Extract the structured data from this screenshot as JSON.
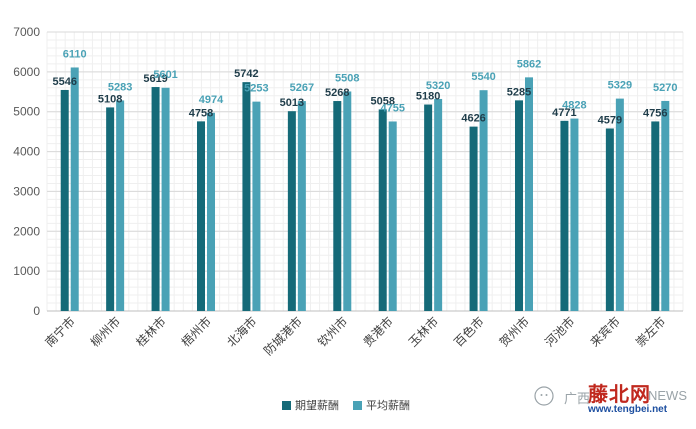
{
  "chart_data": {
    "type": "bar",
    "categories": [
      "南宁市",
      "柳州市",
      "桂林市",
      "梧州市",
      "北海市",
      "防城港市",
      "钦州市",
      "贵港市",
      "玉林市",
      "百色市",
      "贺州市",
      "河池市",
      "来宾市",
      "崇左市"
    ],
    "series": [
      {
        "name": "期望薪酬",
        "color": "#156a78",
        "values": [
          5546,
          5108,
          5619,
          4758,
          5742,
          5013,
          5268,
          5058,
          5180,
          4626,
          5285,
          4771,
          4579,
          4756
        ]
      },
      {
        "name": "平均薪酬",
        "color": "#4aa2b6",
        "values": [
          6110,
          5283,
          5601,
          4974,
          5253,
          5267,
          5508,
          4755,
          5320,
          5540,
          5862,
          4828,
          5329,
          5270
        ]
      }
    ],
    "ylim": [
      0,
      7000
    ],
    "yticks": [
      0,
      1000,
      2000,
      3000,
      4000,
      5000,
      6000,
      7000
    ],
    "grid": true,
    "legend": "bottom",
    "data_label_colors": [
      "#1f3d4a",
      "#4aa2b6"
    ]
  },
  "watermark": {
    "prefix": "广西",
    "brand": "藤北网",
    "suffix": "NEWS",
    "url": "www.tengbei.net"
  }
}
